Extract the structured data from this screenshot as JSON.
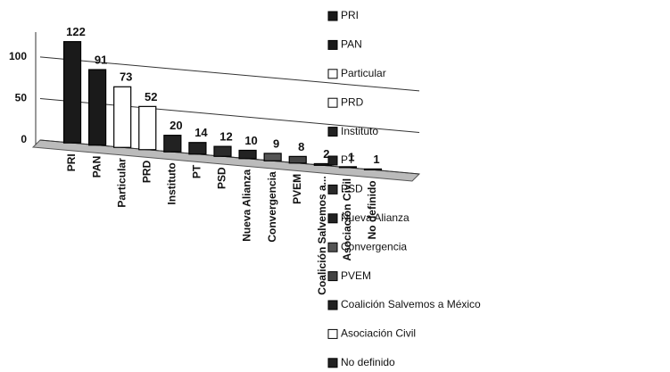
{
  "chart_data": {
    "type": "bar",
    "categories": [
      "PRI",
      "PAN",
      "Particular",
      "PRD",
      "Instituto",
      "PT",
      "PSD",
      "Nueva Alianza",
      "Convergencia",
      "PVEM",
      "Coalición Salvemos a México",
      "Asociación Civil",
      "No definido"
    ],
    "category_labels": [
      "PRI",
      "PAN",
      "Particular",
      "PRD",
      "Instituto",
      "PT",
      "PSD",
      "Nueva Alianza",
      "Convergencia",
      "PVEM",
      "Coalición Salvemos a...",
      "Asociación Civil",
      "No definido"
    ],
    "values": [
      122,
      91,
      73,
      52,
      20,
      14,
      12,
      10,
      9,
      8,
      2,
      1,
      1
    ],
    "colors": [
      "#1a1a1a",
      "#1a1a1a",
      "#ffffff",
      "#ffffff",
      "#222222",
      "#222222",
      "#2a2a2a",
      "#222222",
      "#555555",
      "#444444",
      "#222222",
      "#ffffff",
      "#222222"
    ],
    "ylim": [
      0,
      130
    ],
    "yticks": [
      0,
      50,
      100
    ],
    "grid": true
  }
}
